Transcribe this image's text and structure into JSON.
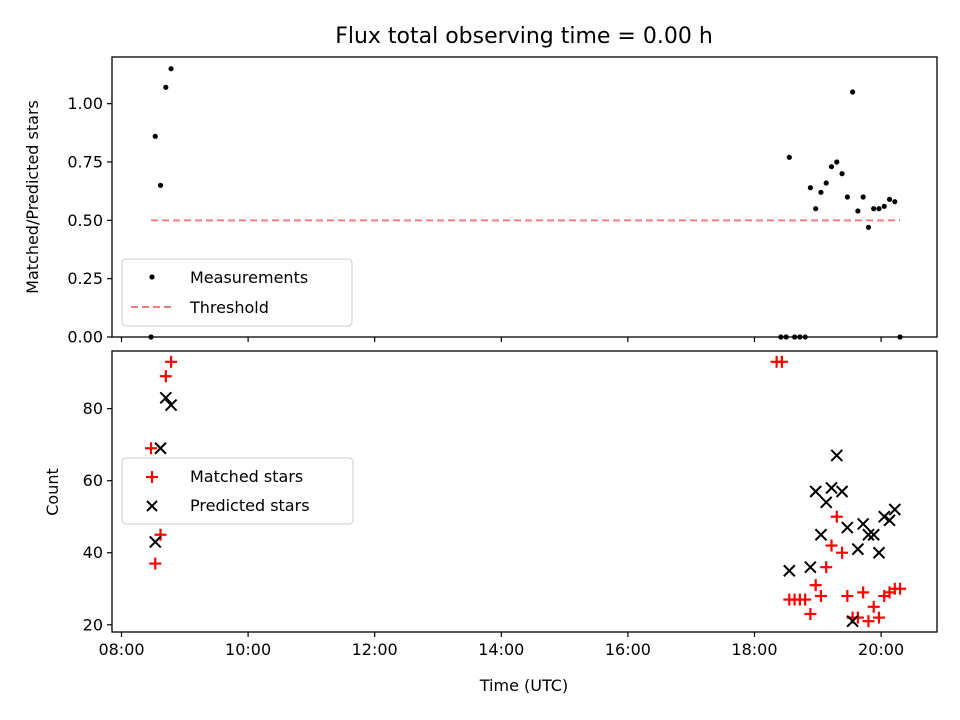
{
  "chart_data": [
    {
      "type": "scatter",
      "title": "Flux total observing time = 0.00 h",
      "ylabel": "Matched/Predicted stars",
      "xlabel": "",
      "ylim": [
        0,
        1.2
      ],
      "yticks": [
        0,
        0.25,
        0.5,
        0.75,
        1.0
      ],
      "ytick_labels": [
        "0.00",
        "0.25",
        "0.50",
        "0.75",
        "1.00"
      ],
      "xlim": [
        "07:51",
        "20:53"
      ],
      "x_tick_labels_hidden": true,
      "legend_position": "lower-left",
      "series": [
        {
          "name": "Measurements",
          "marker": "dot",
          "color": "#000000",
          "points": [
            {
              "x": "08:28",
              "y": 0.0
            },
            {
              "x": "08:32",
              "y": 0.86
            },
            {
              "x": "08:37",
              "y": 0.65
            },
            {
              "x": "08:42",
              "y": 1.07
            },
            {
              "x": "08:47",
              "y": 1.15
            },
            {
              "x": "18:25",
              "y": 0.0
            },
            {
              "x": "18:30",
              "y": 0.0
            },
            {
              "x": "18:33",
              "y": 0.77
            },
            {
              "x": "18:38",
              "y": 0.0
            },
            {
              "x": "18:43",
              "y": 0.0
            },
            {
              "x": "18:48",
              "y": 0.0
            },
            {
              "x": "18:53",
              "y": 0.64
            },
            {
              "x": "18:58",
              "y": 0.55
            },
            {
              "x": "19:03",
              "y": 0.62
            },
            {
              "x": "19:08",
              "y": 0.66
            },
            {
              "x": "19:13",
              "y": 0.73
            },
            {
              "x": "19:18",
              "y": 0.75
            },
            {
              "x": "19:23",
              "y": 0.7
            },
            {
              "x": "19:28",
              "y": 0.6
            },
            {
              "x": "19:33",
              "y": 1.05
            },
            {
              "x": "19:38",
              "y": 0.54
            },
            {
              "x": "19:43",
              "y": 0.6
            },
            {
              "x": "19:48",
              "y": 0.47
            },
            {
              "x": "19:53",
              "y": 0.55
            },
            {
              "x": "19:58",
              "y": 0.55
            },
            {
              "x": "20:03",
              "y": 0.56
            },
            {
              "x": "20:08",
              "y": 0.59
            },
            {
              "x": "20:13",
              "y": 0.58
            },
            {
              "x": "20:18",
              "y": 0.0
            }
          ]
        },
        {
          "name": "Threshold",
          "marker": "dashed-line",
          "color": "#f08080",
          "points": [
            {
              "x": "08:28",
              "y": 0.5
            },
            {
              "x": "20:18",
              "y": 0.5
            }
          ]
        }
      ]
    },
    {
      "type": "scatter",
      "title": "",
      "xlabel": "Time (UTC)",
      "ylabel": "Count",
      "ylim": [
        18,
        96
      ],
      "yticks": [
        20,
        40,
        60,
        80
      ],
      "ytick_labels": [
        "20",
        "40",
        "60",
        "80"
      ],
      "xlim": [
        "07:51",
        "20:53"
      ],
      "xticks": [
        "08:00",
        "10:00",
        "12:00",
        "14:00",
        "16:00",
        "18:00",
        "20:00"
      ],
      "legend_position": "center-left",
      "series": [
        {
          "name": "Matched stars",
          "marker": "plus",
          "color": "#ff0000",
          "points": [
            {
              "x": "08:28",
              "y": 69
            },
            {
              "x": "08:32",
              "y": 37
            },
            {
              "x": "08:37",
              "y": 45
            },
            {
              "x": "08:42",
              "y": 89
            },
            {
              "x": "08:47",
              "y": 93
            },
            {
              "x": "18:21",
              "y": 93
            },
            {
              "x": "18:26",
              "y": 93
            },
            {
              "x": "18:33",
              "y": 27
            },
            {
              "x": "18:38",
              "y": 27
            },
            {
              "x": "18:43",
              "y": 27
            },
            {
              "x": "18:48",
              "y": 27
            },
            {
              "x": "18:53",
              "y": 23
            },
            {
              "x": "18:58",
              "y": 31
            },
            {
              "x": "19:03",
              "y": 28
            },
            {
              "x": "19:08",
              "y": 36
            },
            {
              "x": "19:13",
              "y": 42
            },
            {
              "x": "19:18",
              "y": 50
            },
            {
              "x": "19:23",
              "y": 40
            },
            {
              "x": "19:28",
              "y": 28
            },
            {
              "x": "19:33",
              "y": 22
            },
            {
              "x": "19:38",
              "y": 22
            },
            {
              "x": "19:43",
              "y": 29
            },
            {
              "x": "19:48",
              "y": 21
            },
            {
              "x": "19:53",
              "y": 25
            },
            {
              "x": "19:58",
              "y": 22
            },
            {
              "x": "20:03",
              "y": 28
            },
            {
              "x": "20:08",
              "y": 29
            },
            {
              "x": "20:13",
              "y": 30
            },
            {
              "x": "20:18",
              "y": 30
            }
          ]
        },
        {
          "name": "Predicted stars",
          "marker": "x",
          "color": "#000000",
          "points": [
            {
              "x": "08:32",
              "y": 43
            },
            {
              "x": "08:37",
              "y": 69
            },
            {
              "x": "08:42",
              "y": 83
            },
            {
              "x": "08:47",
              "y": 81
            },
            {
              "x": "18:33",
              "y": 35
            },
            {
              "x": "18:53",
              "y": 36
            },
            {
              "x": "18:58",
              "y": 57
            },
            {
              "x": "19:03",
              "y": 45
            },
            {
              "x": "19:08",
              "y": 54
            },
            {
              "x": "19:13",
              "y": 58
            },
            {
              "x": "19:18",
              "y": 67
            },
            {
              "x": "19:23",
              "y": 57
            },
            {
              "x": "19:28",
              "y": 47
            },
            {
              "x": "19:33",
              "y": 21
            },
            {
              "x": "19:38",
              "y": 41
            },
            {
              "x": "19:43",
              "y": 48
            },
            {
              "x": "19:48",
              "y": 45
            },
            {
              "x": "19:53",
              "y": 45
            },
            {
              "x": "19:58",
              "y": 40
            },
            {
              "x": "20:03",
              "y": 50
            },
            {
              "x": "20:08",
              "y": 49
            },
            {
              "x": "20:13",
              "y": 52
            }
          ]
        }
      ]
    }
  ]
}
